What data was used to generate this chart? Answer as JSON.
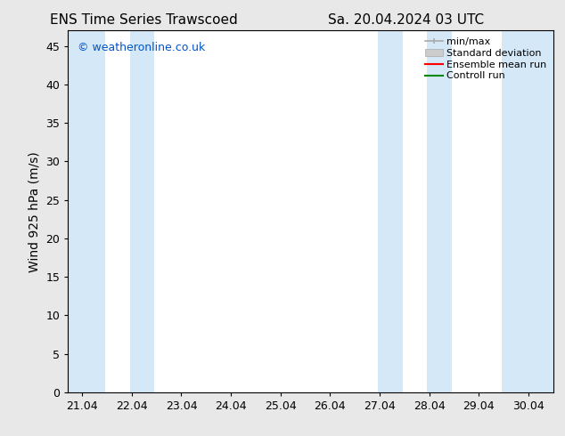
{
  "title_left": "ENS Time Series Trawscoed",
  "title_right": "Sa. 20.04.2024 03 UTC",
  "ylabel": "Wind 925 hPa (m/s)",
  "watermark": "© weatheronline.co.uk",
  "xlim_start": 20.75,
  "xlim_end": 30.55,
  "ylim_bottom": 0,
  "ylim_top": 47,
  "yticks": [
    0,
    5,
    10,
    15,
    20,
    25,
    30,
    35,
    40,
    45
  ],
  "xtick_labels": [
    "21.04",
    "22.04",
    "23.04",
    "24.04",
    "25.04",
    "26.04",
    "27.04",
    "28.04",
    "29.04",
    "30.04"
  ],
  "xtick_positions": [
    21.04,
    22.04,
    23.04,
    24.04,
    25.04,
    26.04,
    27.04,
    28.04,
    29.04,
    30.04
  ],
  "shaded_bands": [
    [
      20.75,
      21.5
    ],
    [
      22.0,
      22.5
    ],
    [
      27.0,
      27.5
    ],
    [
      28.0,
      28.5
    ],
    [
      29.5,
      30.55
    ]
  ],
  "band_color": "#d4e8f7",
  "background_color": "#ffffff",
  "fig_background": "#e8e8e8",
  "legend_entries": [
    {
      "label": "min/max",
      "color": "#aaaaaa",
      "style": "line_with_caps"
    },
    {
      "label": "Standard deviation",
      "color": "#cccccc",
      "style": "bar"
    },
    {
      "label": "Ensemble mean run",
      "color": "#ff0000",
      "style": "line"
    },
    {
      "label": "Controll run",
      "color": "#008800",
      "style": "line"
    }
  ],
  "title_fontsize": 11,
  "axis_fontsize": 10,
  "tick_fontsize": 9,
  "legend_fontsize": 8,
  "watermark_fontsize": 9,
  "watermark_color": "#0055cc"
}
